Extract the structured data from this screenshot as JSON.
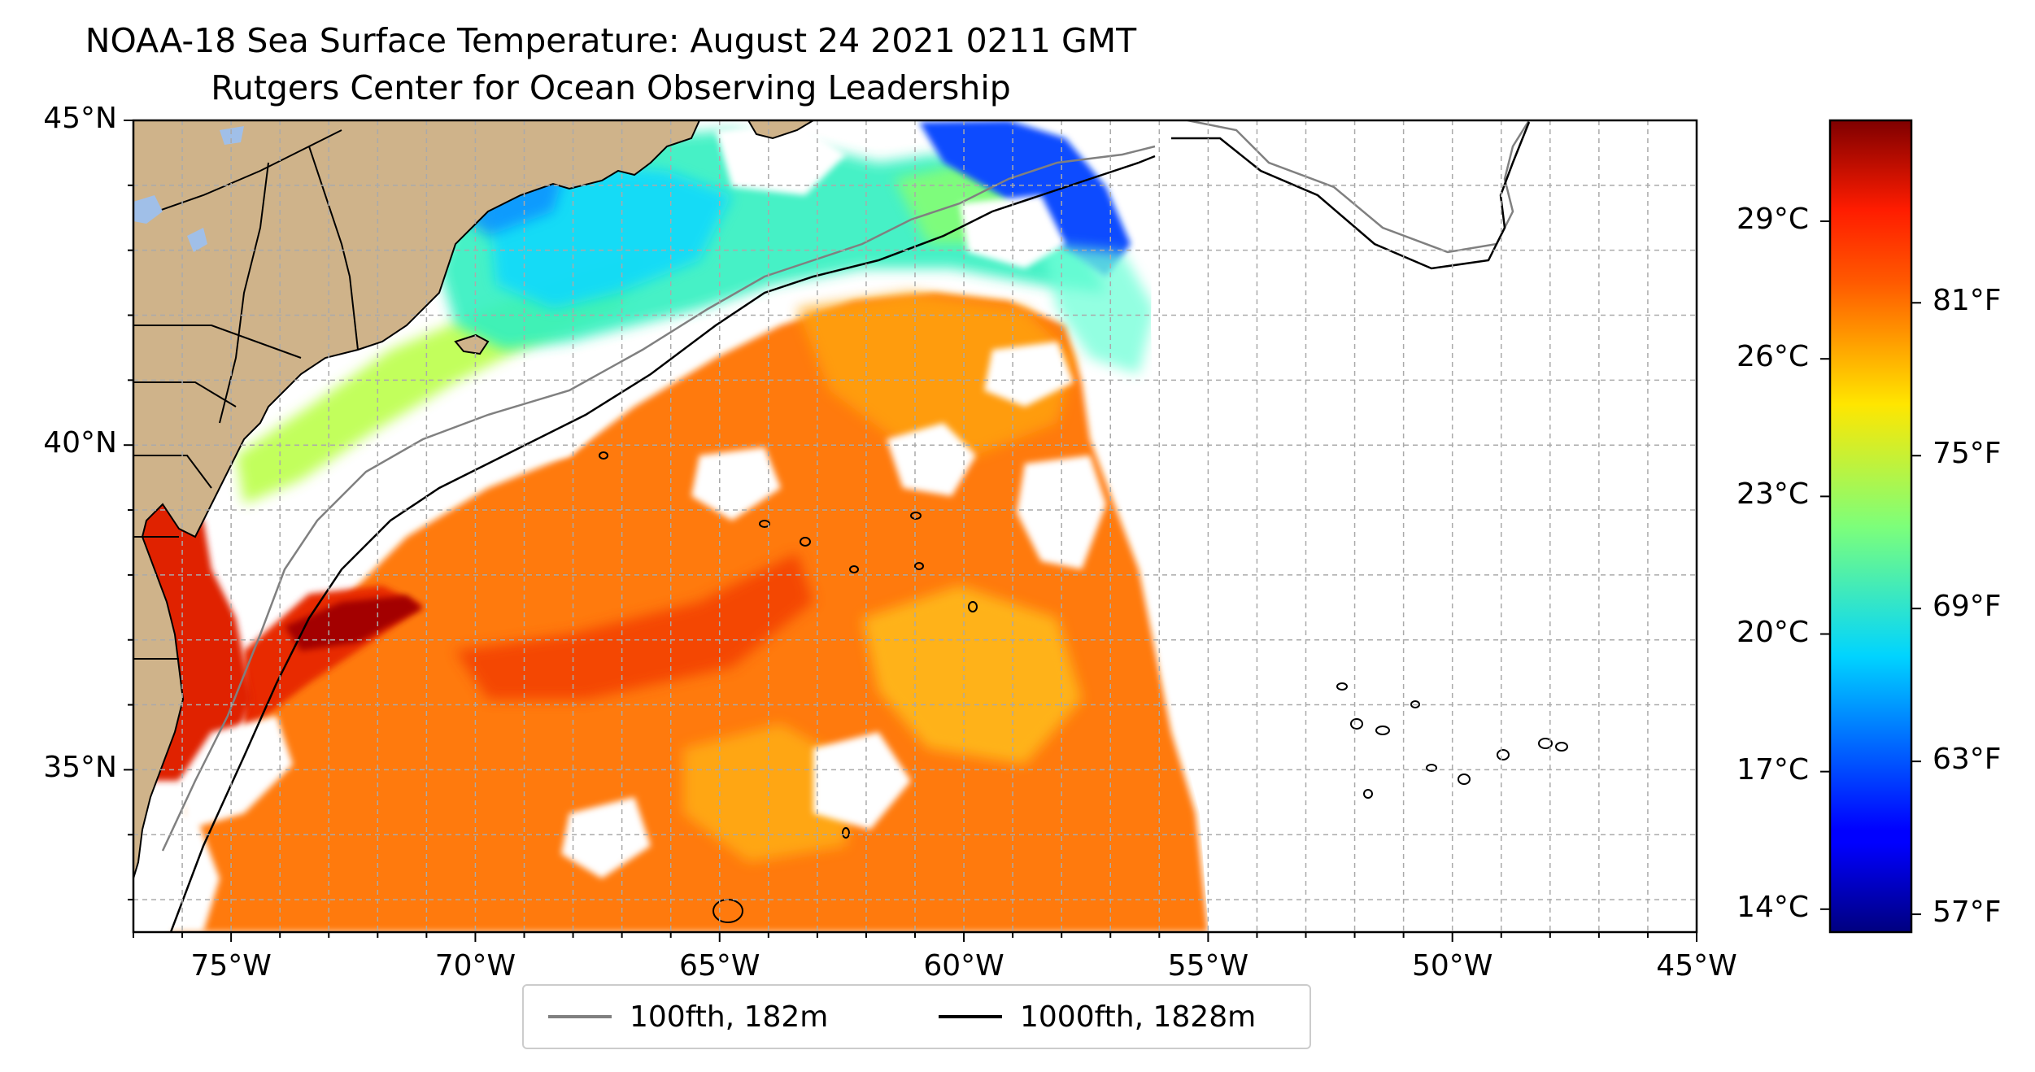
{
  "title": "NOAA-18 Sea Surface Temperature: August 24 2021 0211 GMT",
  "subtitle": "Rutgers Center for Ocean Observing Leadership",
  "map": {
    "lon_range": [
      -77,
      -45
    ],
    "lat_range": [
      32.5,
      45
    ],
    "lon_ticks": [
      "75°W",
      "70°W",
      "65°W",
      "60°W",
      "55°W",
      "50°W",
      "45°W"
    ],
    "lat_ticks": [
      "45°N",
      "40°N",
      "35°N"
    ],
    "grid": true,
    "land_color": "#cfb38a",
    "ocean_no_data_color": "#ffffff"
  },
  "colorbar": {
    "colormap": "jet",
    "celsius_ticks": [
      "29°C",
      "26°C",
      "23°C",
      "20°C",
      "17°C",
      "14°C"
    ],
    "fahrenheit_ticks": [
      "81°F",
      "75°F",
      "69°F",
      "63°F",
      "57°F"
    ]
  },
  "legend": {
    "items": [
      {
        "label": "100fth, 182m",
        "color": "#808080"
      },
      {
        "label": "1000fth, 1828m",
        "color": "#000000"
      }
    ]
  }
}
